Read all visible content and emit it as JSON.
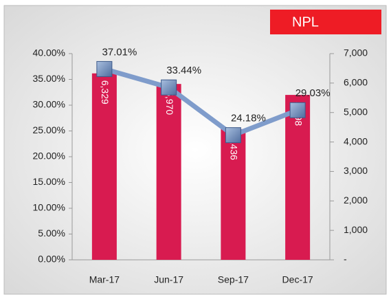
{
  "chart_data": {
    "type": "bar",
    "title": "NPL",
    "categories": [
      "Mar-17",
      "Jun-17",
      "Sep-17",
      "Dec-17"
    ],
    "series": [
      {
        "type": "bar",
        "axis": "y2",
        "color": "#d81b50",
        "values": [
          6329,
          5970,
          4436,
          5598
        ],
        "value_labels": [
          "6,329",
          "5,970",
          "4,436",
          "5,598"
        ]
      },
      {
        "type": "line",
        "axis": "y",
        "color": "#7f9ccb",
        "values": [
          37.01,
          33.44,
          24.18,
          29.03
        ],
        "value_labels": [
          "37.01%",
          "33.44%",
          "24.18%",
          "29.03%"
        ]
      }
    ],
    "ylim": [
      0,
      40
    ],
    "yticks": [
      {
        "value": 0,
        "label": "0.00%"
      },
      {
        "value": 5,
        "label": "5.00%"
      },
      {
        "value": 10,
        "label": "10.00%"
      },
      {
        "value": 15,
        "label": "15.00%"
      },
      {
        "value": 20,
        "label": "20.00%"
      },
      {
        "value": 25,
        "label": "25.00%"
      },
      {
        "value": 30,
        "label": "30.00%"
      },
      {
        "value": 35,
        "label": "35.00%"
      },
      {
        "value": 40,
        "label": "40.00%"
      }
    ],
    "y2lim": [
      0,
      7000
    ],
    "y2ticks": [
      {
        "value": 0,
        "label": "-"
      },
      {
        "value": 1000,
        "label": "1,000"
      },
      {
        "value": 2000,
        "label": "2,000"
      },
      {
        "value": 3000,
        "label": "3,000"
      },
      {
        "value": 4000,
        "label": "4,000"
      },
      {
        "value": 5000,
        "label": "5,000"
      },
      {
        "value": 6000,
        "label": "6,000"
      },
      {
        "value": 7000,
        "label": "7,000"
      }
    ]
  }
}
